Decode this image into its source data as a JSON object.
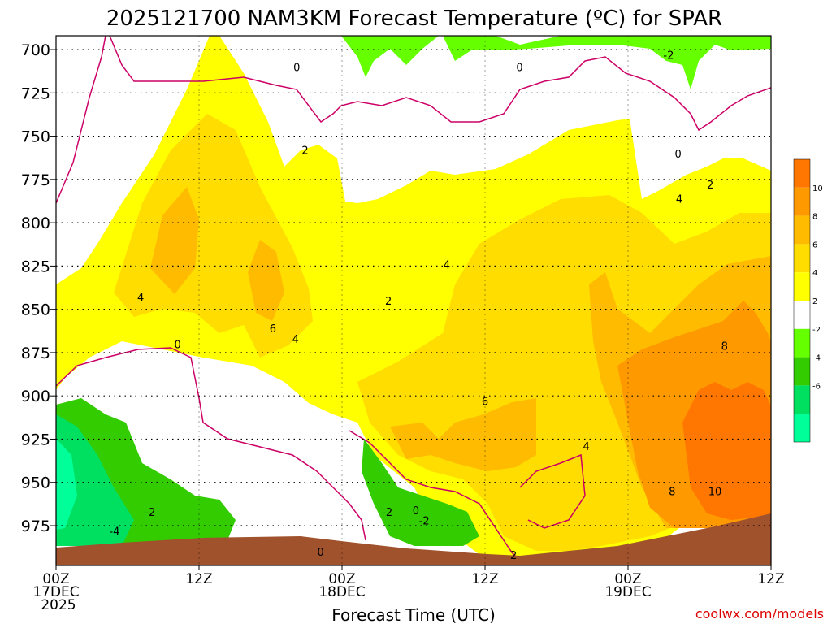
{
  "chart_data": {
    "type": "heatmap",
    "title": "2025121700 NAM3KM Forecast Temperature (ºC) for SPAR",
    "xlabel": "Forecast Time (UTC)",
    "ylabel": "",
    "watermark": "coolwx.com/models",
    "x_ticks": [
      {
        "hour": 0,
        "lines": [
          "00Z",
          "17DEC",
          "2025"
        ]
      },
      {
        "hour": 12,
        "lines": [
          "12Z"
        ]
      },
      {
        "hour": 24,
        "lines": [
          "00Z",
          "18DEC"
        ]
      },
      {
        "hour": 36,
        "lines": [
          "12Z"
        ]
      },
      {
        "hour": 48,
        "lines": [
          "00Z",
          "19DEC"
        ]
      },
      {
        "hour": 60,
        "lines": [
          "12Z"
        ]
      }
    ],
    "xlim": [
      0,
      60
    ],
    "y_ticks": [
      700,
      725,
      750,
      775,
      800,
      825,
      850,
      875,
      900,
      925,
      950,
      975
    ],
    "ylim_hpa": [
      692,
      998
    ],
    "colorbar": {
      "levels": [
        -6,
        -4,
        -2,
        2,
        4,
        6,
        8,
        10
      ],
      "labels": [
        "-6",
        "-4",
        "-2",
        "2",
        "4",
        "6",
        "8",
        "10"
      ],
      "band_colors": [
        "#00ff99",
        "#00e060",
        "#33cc00",
        "#66ff00",
        "#ffffff",
        "#ffff00",
        "#ffdd00",
        "#ffbb00",
        "#ff9900",
        "#ff7700"
      ]
    },
    "contour_labels": [
      {
        "text": "0",
        "hour": 20.2,
        "hpa": 710
      },
      {
        "text": "0",
        "hour": 38.9,
        "hpa": 710
      },
      {
        "text": "-2",
        "hour": 51.4,
        "hpa": 703
      },
      {
        "text": "2",
        "hour": 20.9,
        "hpa": 758
      },
      {
        "text": "0",
        "hour": 52.2,
        "hpa": 760
      },
      {
        "text": "2",
        "hour": 54.9,
        "hpa": 778
      },
      {
        "text": "4",
        "hour": 52.3,
        "hpa": 786
      },
      {
        "text": "4",
        "hour": 32.8,
        "hpa": 824
      },
      {
        "text": "2",
        "hour": 27.9,
        "hpa": 845
      },
      {
        "text": "4",
        "hour": 7.1,
        "hpa": 843
      },
      {
        "text": "6",
        "hour": 18.2,
        "hpa": 861
      },
      {
        "text": "4",
        "hour": 20.1,
        "hpa": 867
      },
      {
        "text": "0",
        "hour": 10.2,
        "hpa": 870
      },
      {
        "text": "8",
        "hour": 56.1,
        "hpa": 871
      },
      {
        "text": "6",
        "hour": 36.0,
        "hpa": 903
      },
      {
        "text": "4",
        "hour": 44.5,
        "hpa": 929
      },
      {
        "text": "8",
        "hour": 51.7,
        "hpa": 955
      },
      {
        "text": "10",
        "hour": 55.3,
        "hpa": 955
      },
      {
        "text": "-2",
        "hour": 7.9,
        "hpa": 967
      },
      {
        "text": "-4",
        "hour": 4.9,
        "hpa": 978
      },
      {
        "text": "-2",
        "hour": 27.8,
        "hpa": 967
      },
      {
        "text": "0",
        "hour": 30.2,
        "hpa": 966
      },
      {
        "text": "-2",
        "hour": 30.9,
        "hpa": 972
      },
      {
        "text": "2",
        "hour": 38.4,
        "hpa": 992
      },
      {
        "text": "0",
        "hour": 22.2,
        "hpa": 990
      }
    ],
    "legend": "colorbar-right",
    "grid": true
  }
}
